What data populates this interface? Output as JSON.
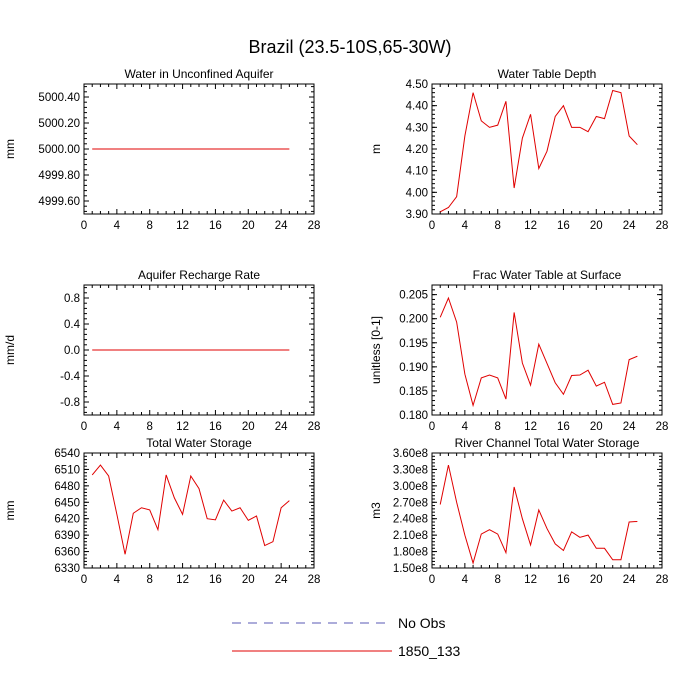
{
  "title": "Brazil (23.5-10S,65-30W)",
  "legend": [
    {
      "label": "No Obs",
      "color": "#5a5ab4",
      "dash": true
    },
    {
      "label": "1850_133",
      "color": "#e00000",
      "dash": false
    }
  ],
  "chart_data": [
    {
      "type": "line",
      "title": "Water in Unconfined Aquifer",
      "ylabel": "mm",
      "xlim": [
        0,
        28
      ],
      "xticks": [
        "0",
        "4",
        "8",
        "12",
        "16",
        "20",
        "24",
        "28"
      ],
      "ylim": [
        4999.5,
        5000.5
      ],
      "yticks": [
        {
          "v": 5000.4,
          "label": "5000.40"
        },
        {
          "v": 5000.2,
          "label": "5000.20"
        },
        {
          "v": 5000.0,
          "label": "5000.00"
        },
        {
          "v": 4999.8,
          "label": "4999.80"
        },
        {
          "v": 4999.6,
          "label": "4999.60"
        }
      ],
      "series": [
        {
          "name": "1850_133",
          "x": [
            1,
            2,
            3,
            4,
            5,
            6,
            7,
            8,
            9,
            10,
            11,
            12,
            13,
            14,
            15,
            16,
            17,
            18,
            19,
            20,
            21,
            22,
            23,
            24,
            25
          ],
          "values": [
            5000,
            5000,
            5000,
            5000,
            5000,
            5000,
            5000,
            5000,
            5000,
            5000,
            5000,
            5000,
            5000,
            5000,
            5000,
            5000,
            5000,
            5000,
            5000,
            5000,
            5000,
            5000,
            5000,
            5000,
            5000
          ]
        }
      ]
    },
    {
      "type": "line",
      "title": "Water Table Depth",
      "ylabel": "m",
      "xlim": [
        0,
        28
      ],
      "xticks": [
        "0",
        "4",
        "8",
        "12",
        "16",
        "20",
        "24",
        "28"
      ],
      "ylim": [
        3.9,
        4.5
      ],
      "yticks": [
        {
          "v": 4.5,
          "label": "4.50"
        },
        {
          "v": 4.4,
          "label": "4.40"
        },
        {
          "v": 4.3,
          "label": "4.30"
        },
        {
          "v": 4.2,
          "label": "4.20"
        },
        {
          "v": 4.1,
          "label": "4.10"
        },
        {
          "v": 4.0,
          "label": "4.00"
        },
        {
          "v": 3.9,
          "label": "3.90"
        }
      ],
      "series": [
        {
          "name": "1850_133",
          "x": [
            1,
            2,
            3,
            4,
            5,
            6,
            7,
            8,
            9,
            10,
            11,
            12,
            13,
            14,
            15,
            16,
            17,
            18,
            19,
            20,
            21,
            22,
            23,
            24,
            25
          ],
          "values": [
            3.91,
            3.93,
            3.98,
            4.26,
            4.46,
            4.33,
            4.3,
            4.31,
            4.42,
            4.02,
            4.25,
            4.36,
            4.11,
            4.19,
            4.35,
            4.4,
            4.3,
            4.3,
            4.28,
            4.35,
            4.34,
            4.47,
            4.46,
            4.26,
            4.22
          ]
        }
      ]
    },
    {
      "type": "line",
      "title": "Aquifer Recharge Rate",
      "ylabel": "mm/d",
      "xlim": [
        0,
        28
      ],
      "xticks": [
        "0",
        "4",
        "8",
        "12",
        "16",
        "20",
        "24",
        "28"
      ],
      "ylim": [
        -1.0,
        1.0
      ],
      "yticks": [
        {
          "v": 0.8,
          "label": "0.8"
        },
        {
          "v": 0.4,
          "label": "0.4"
        },
        {
          "v": 0.0,
          "label": "0.0"
        },
        {
          "v": -0.4,
          "label": "-0.4"
        },
        {
          "v": -0.8,
          "label": "-0.8"
        }
      ],
      "series": [
        {
          "name": "1850_133",
          "x": [
            1,
            2,
            3,
            4,
            5,
            6,
            7,
            8,
            9,
            10,
            11,
            12,
            13,
            14,
            15,
            16,
            17,
            18,
            19,
            20,
            21,
            22,
            23,
            24,
            25
          ],
          "values": [
            0,
            0,
            0,
            0,
            0,
            0,
            0,
            0,
            0,
            0,
            0,
            0,
            0,
            0,
            0,
            0,
            0,
            0,
            0,
            0,
            0,
            0,
            0,
            0,
            0
          ]
        }
      ]
    },
    {
      "type": "line",
      "title": "Frac Water Table at Surface",
      "ylabel": "unitless [0-1]",
      "xlim": [
        0,
        28
      ],
      "xticks": [
        "0",
        "4",
        "8",
        "12",
        "16",
        "20",
        "24",
        "28"
      ],
      "ylim": [
        0.18,
        0.207
      ],
      "yticks": [
        {
          "v": 0.205,
          "label": "0.205"
        },
        {
          "v": 0.2,
          "label": "0.200"
        },
        {
          "v": 0.195,
          "label": "0.195"
        },
        {
          "v": 0.19,
          "label": "0.190"
        },
        {
          "v": 0.185,
          "label": "0.185"
        },
        {
          "v": 0.18,
          "label": "0.180"
        }
      ],
      "series": [
        {
          "name": "1850_133",
          "x": [
            1,
            2,
            3,
            4,
            5,
            6,
            7,
            8,
            9,
            10,
            11,
            12,
            13,
            14,
            15,
            16,
            17,
            18,
            19,
            20,
            21,
            22,
            23,
            24,
            25
          ],
          "values": [
            0.2003,
            0.2043,
            0.1993,
            0.1885,
            0.182,
            0.1877,
            0.1883,
            0.1877,
            0.1833,
            0.2013,
            0.1908,
            0.1862,
            0.1947,
            0.1907,
            0.1867,
            0.1843,
            0.1882,
            0.1883,
            0.1893,
            0.186,
            0.1868,
            0.1822,
            0.1825,
            0.1915,
            0.1922
          ]
        }
      ]
    },
    {
      "type": "line",
      "title": "Total Water Storage",
      "ylabel": "mm",
      "xlim": [
        0,
        28
      ],
      "xticks": [
        "0",
        "4",
        "8",
        "12",
        "16",
        "20",
        "24",
        "28"
      ],
      "ylim": [
        6330,
        6540
      ],
      "yticks": [
        {
          "v": 6540,
          "label": "6540"
        },
        {
          "v": 6510,
          "label": "6510"
        },
        {
          "v": 6480,
          "label": "6480"
        },
        {
          "v": 6450,
          "label": "6450"
        },
        {
          "v": 6420,
          "label": "6420"
        },
        {
          "v": 6390,
          "label": "6390"
        },
        {
          "v": 6360,
          "label": "6360"
        },
        {
          "v": 6330,
          "label": "6330"
        }
      ],
      "series": [
        {
          "name": "1850_133",
          "x": [
            1,
            2,
            3,
            4,
            5,
            6,
            7,
            8,
            9,
            10,
            11,
            12,
            13,
            14,
            15,
            16,
            17,
            18,
            19,
            20,
            21,
            22,
            23,
            24,
            25
          ],
          "values": [
            6500,
            6518,
            6498,
            6428,
            6355,
            6430,
            6440,
            6436,
            6400,
            6500,
            6458,
            6428,
            6498,
            6475,
            6420,
            6418,
            6454,
            6434,
            6440,
            6417,
            6425,
            6371,
            6378,
            6440,
            6453
          ]
        }
      ]
    },
    {
      "type": "line",
      "title": "River Channel Total Water Storage",
      "ylabel": "m3",
      "xlim": [
        0,
        28
      ],
      "xticks": [
        "0",
        "4",
        "8",
        "12",
        "16",
        "20",
        "24",
        "28"
      ],
      "ylim": [
        150000000,
        360000000
      ],
      "yticks": [
        {
          "v": 360000000,
          "label": "3.60e8"
        },
        {
          "v": 330000000,
          "label": "3.30e8"
        },
        {
          "v": 300000000,
          "label": "3.00e8"
        },
        {
          "v": 270000000,
          "label": "2.70e8"
        },
        {
          "v": 240000000,
          "label": "2.40e8"
        },
        {
          "v": 210000000,
          "label": "2.10e8"
        },
        {
          "v": 180000000,
          "label": "1.80e8"
        },
        {
          "v": 150000000,
          "label": "1.50e8"
        }
      ],
      "series": [
        {
          "name": "1850_133",
          "x": [
            1,
            2,
            3,
            4,
            5,
            6,
            7,
            8,
            9,
            10,
            11,
            12,
            13,
            14,
            15,
            16,
            17,
            18,
            19,
            20,
            21,
            22,
            23,
            24,
            25
          ],
          "values": [
            266000000,
            338000000,
            270000000,
            210000000,
            159000000,
            212000000,
            220000000,
            212000000,
            178000000,
            298000000,
            240000000,
            192000000,
            256000000,
            222000000,
            194000000,
            182000000,
            216000000,
            206000000,
            210000000,
            186000000,
            186000000,
            165000000,
            165000000,
            234000000,
            235000000
          ]
        }
      ]
    }
  ]
}
